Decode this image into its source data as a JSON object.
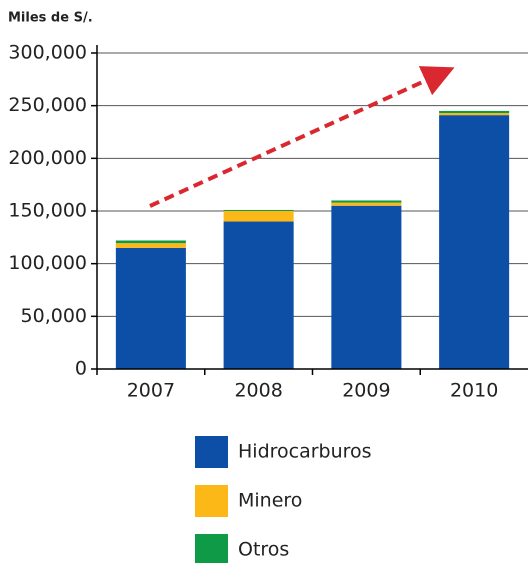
{
  "chart_data": {
    "type": "stacked_bar",
    "y_axis_label": "Miles de S/.",
    "categories": [
      "2007",
      "2008",
      "2009",
      "2010"
    ],
    "series": [
      {
        "name": "Hidrocarburos",
        "color": "#0d4ea6",
        "values": [
          115000,
          140000,
          155000,
          241000
        ]
      },
      {
        "name": "Minero",
        "color": "#fbb817",
        "values": [
          4500,
          10000,
          3000,
          2000
        ]
      },
      {
        "name": "Otros",
        "color": "#0f9a47",
        "values": [
          2500,
          1000,
          2000,
          2000
        ]
      }
    ],
    "ylim": [
      0,
      300000
    ],
    "yticks": [
      0,
      {
        "value": 50000,
        "label": "50,000"
      },
      {
        "value": 100000,
        "label": "100,000"
      },
      {
        "value": 150000,
        "label": "150,000"
      },
      {
        "value": 200000,
        "label": "200,000"
      },
      {
        "value": 250000,
        "label": "250,000"
      },
      {
        "value": 300000,
        "label": "300,000"
      }
    ],
    "grid": true,
    "legend": "bottom"
  }
}
